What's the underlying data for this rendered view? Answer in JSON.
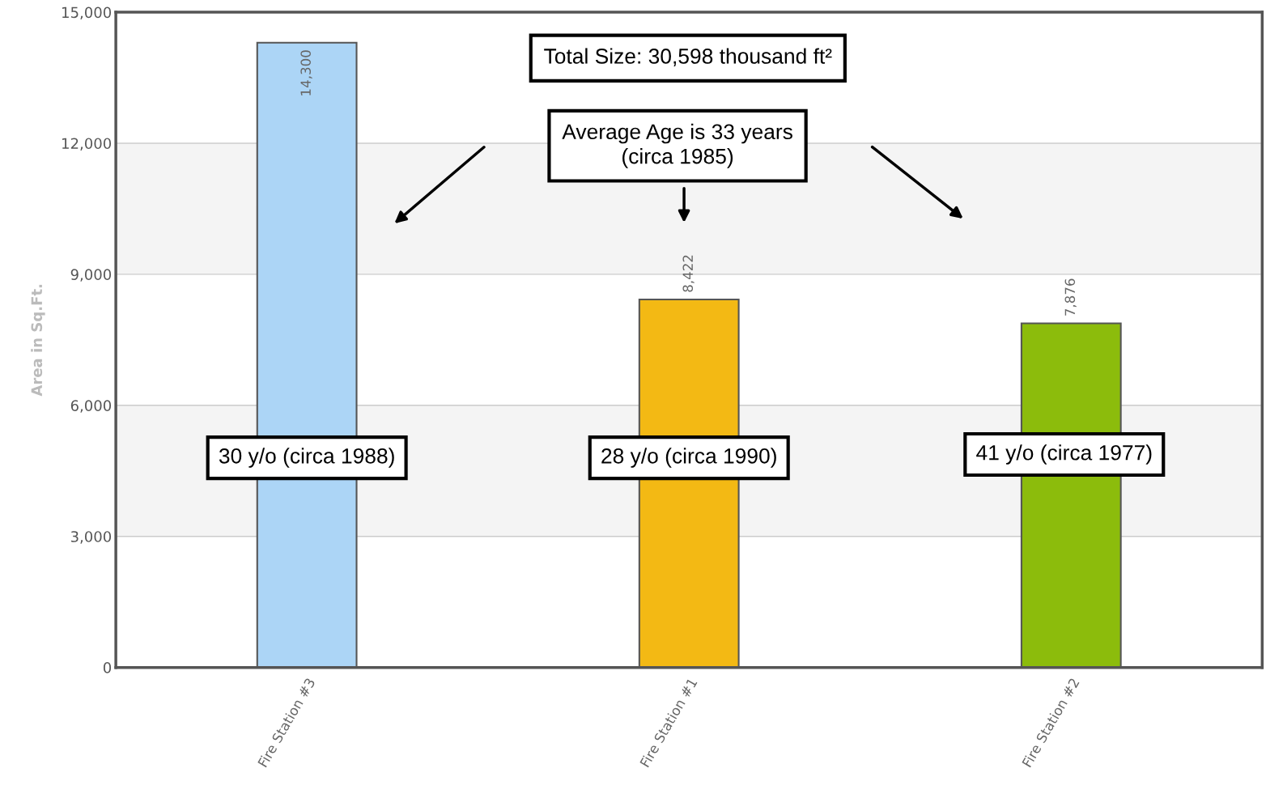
{
  "chart_data": {
    "type": "bar",
    "categories": [
      "Fire Station #3",
      "Fire Station #1",
      "Fire Station #2"
    ],
    "values": [
      14300,
      8422,
      7876
    ],
    "colors": [
      "#acd5f6",
      "#f3b914",
      "#8cbc0c"
    ],
    "ylabel": "Area in Sq.Ft.",
    "ylim": [
      0,
      15000
    ],
    "yticks": [
      {
        "value": 0,
        "label": "0"
      },
      {
        "value": 3000,
        "label": "3,000"
      },
      {
        "value": 6000,
        "label": "6,000"
      },
      {
        "value": 9000,
        "label": "9,000"
      },
      {
        "value": 12000,
        "label": "12,000"
      },
      {
        "value": 15000,
        "label": "15,000"
      }
    ],
    "grid": "y",
    "value_labels": [
      "14,300",
      "8,422",
      "7,876"
    ],
    "annotations": [
      "Total Size: 30,598 thousand ft²",
      "Average Age is 33 years\n(circa 1985)",
      "30 y/o (circa 1988)",
      "28 y/o (circa 1990)",
      "41 y/o (circa 1977)"
    ]
  }
}
